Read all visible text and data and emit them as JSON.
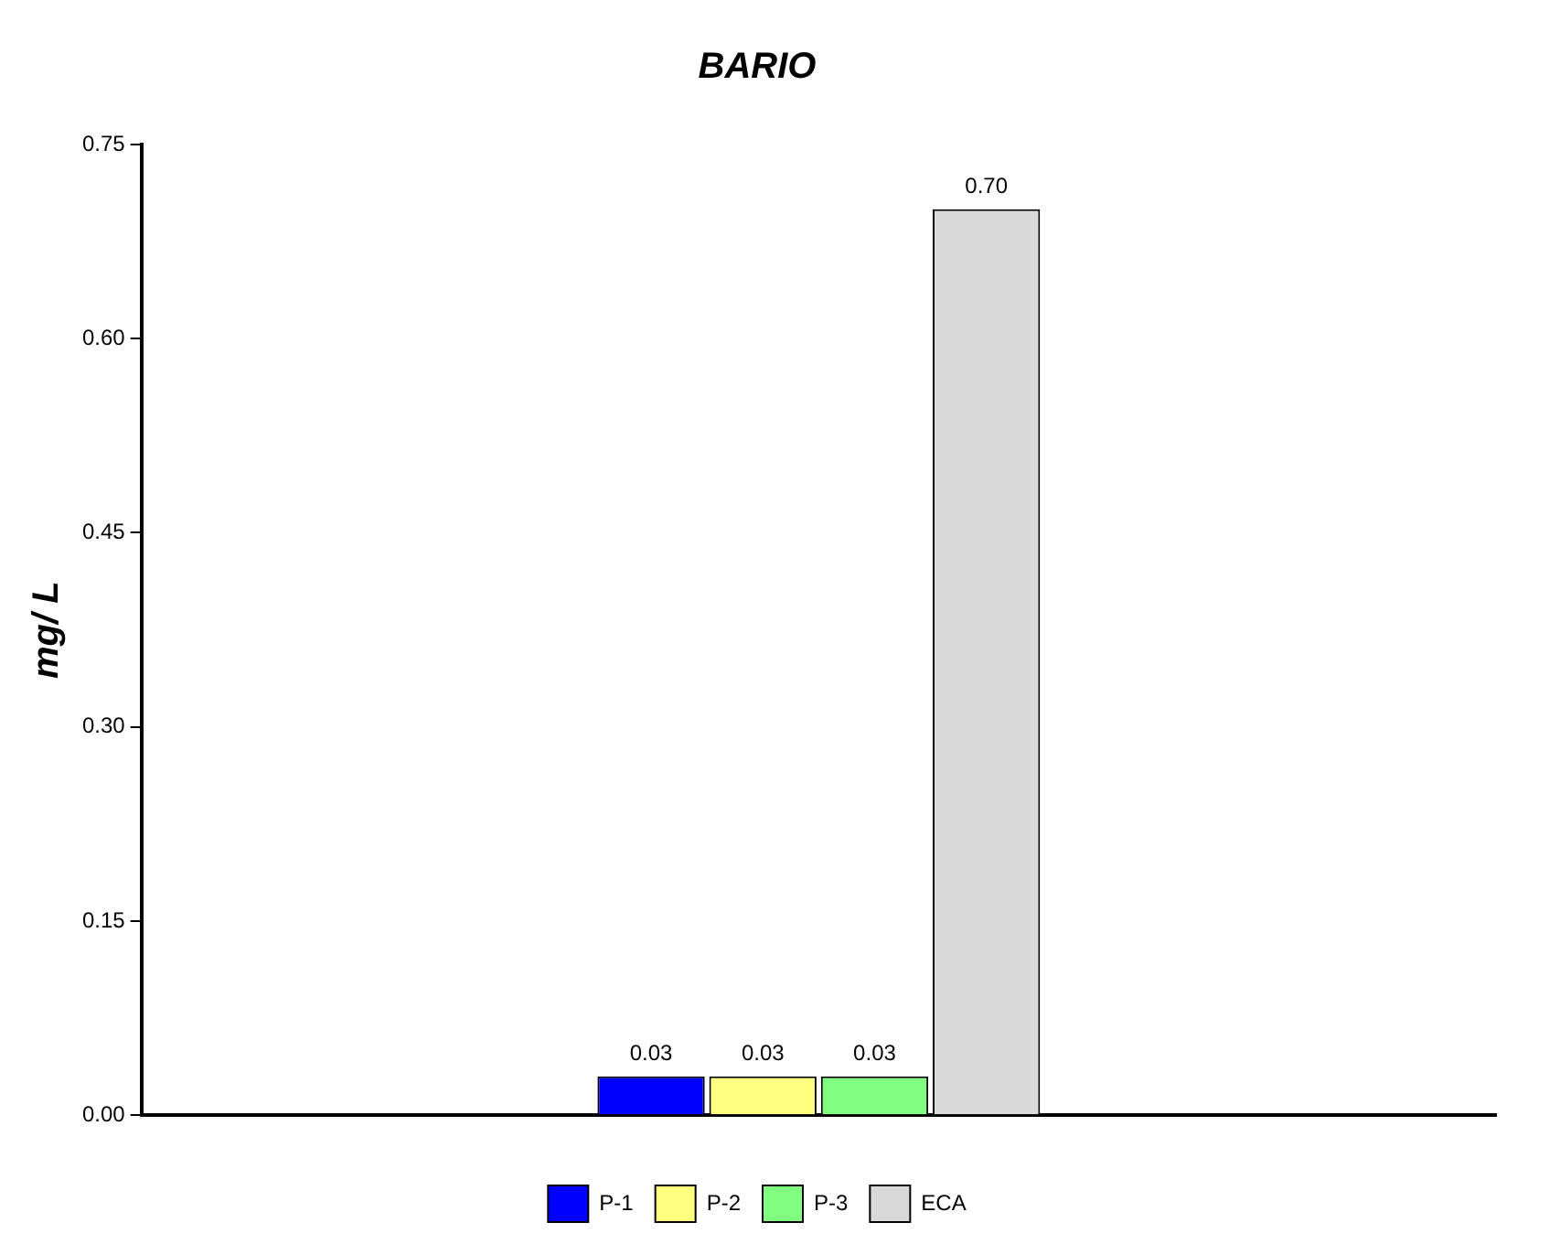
{
  "chart_data": {
    "type": "bar",
    "title": "BARIO",
    "ylabel": "mg/ L",
    "categories": [
      null
    ],
    "series": [
      {
        "name": "P-1",
        "color": "#0000ff",
        "values": [
          0.03
        ],
        "value_labels": [
          "0.03"
        ]
      },
      {
        "name": "P-2",
        "color": "#ffff80",
        "values": [
          0.03
        ],
        "value_labels": [
          "0.03"
        ]
      },
      {
        "name": "P-3",
        "color": "#80ff80",
        "values": [
          0.03
        ],
        "value_labels": [
          "0.03"
        ]
      },
      {
        "name": "ECA",
        "color": "#d9d9d9",
        "values": [
          0.7
        ],
        "value_labels": [
          "0.70"
        ]
      }
    ],
    "ylim": [
      0,
      0.75
    ],
    "yticks": [
      {
        "value": 0,
        "label": "0.00"
      },
      {
        "value": 0.15,
        "label": "0.15"
      },
      {
        "value": 0.3,
        "label": "0.30"
      },
      {
        "value": 0.45,
        "label": "0.45"
      },
      {
        "value": 0.6,
        "label": "0.60"
      },
      {
        "value": 0.75,
        "label": "0.75"
      }
    ],
    "grid": false,
    "legend": "bottom"
  }
}
